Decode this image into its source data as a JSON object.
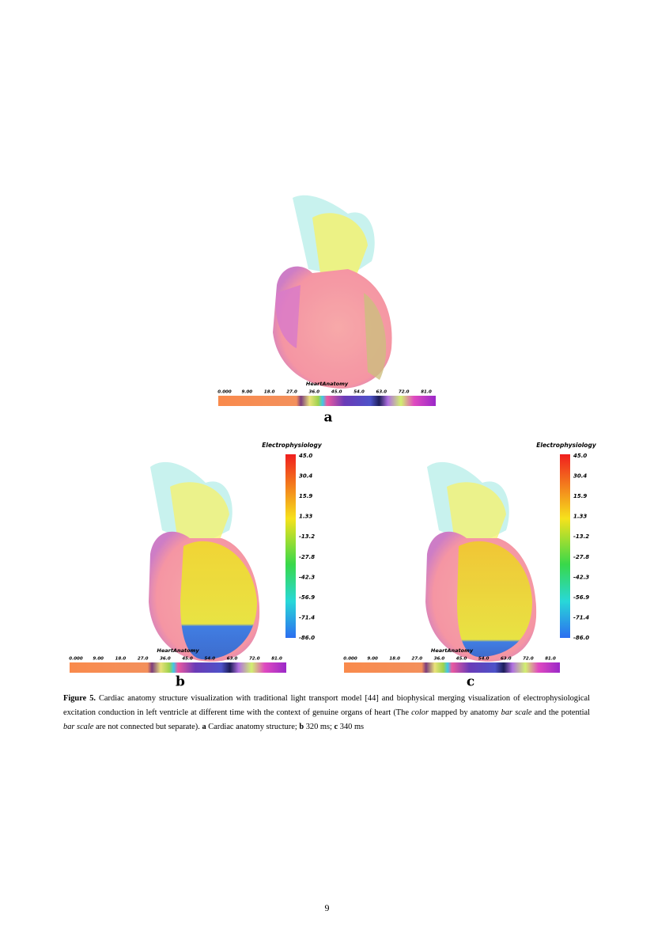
{
  "figure": {
    "panels": [
      {
        "label": "a",
        "anatomy_title": "HeartAnatomy",
        "anatomy_ticks": [
          "0.000",
          "9.00",
          "18.0",
          "27.0",
          "36.0",
          "45.0",
          "54.0",
          "63.0",
          "72.0",
          "81.0"
        ]
      },
      {
        "label": "b",
        "anatomy_title": "HeartAnatomy",
        "anatomy_ticks": [
          "0.000",
          "9.00",
          "18.0",
          "27.0",
          "36.0",
          "45.0",
          "54.0",
          "63.0",
          "72.0",
          "81.0"
        ],
        "ep_title": "Electrophysiology",
        "ep_ticks": [
          "45.0",
          "30.4",
          "15.9",
          "1.33",
          "-13.2",
          "-27.8",
          "-42.3",
          "-56.9",
          "-71.4",
          "-86.0"
        ]
      },
      {
        "label": "c",
        "anatomy_title": "HeartAnatomy",
        "anatomy_ticks": [
          "0.000",
          "9.00",
          "18.0",
          "27.0",
          "36.0",
          "45.0",
          "54.0",
          "63.0",
          "72.0",
          "81.0"
        ],
        "ep_title": "Electrophysiology",
        "ep_ticks": [
          "45.0",
          "30.4",
          "15.9",
          "1.33",
          "-13.2",
          "-27.8",
          "-42.3",
          "-56.9",
          "-71.4",
          "-86.0"
        ]
      }
    ]
  },
  "caption": [
    "Figure 5.",
    " Cardiac anatomy structure visualization with traditional light transport model [44] and biophysical merging visualization of electrophysiological excitation conduction in left ventricle at different time with the context of genuine organs of heart (The ",
    "color",
    " mapped by anatomy ",
    "bar scale",
    " and the potential ",
    "bar scale",
    " are not connected but separate). ",
    "a",
    " Cardiac anatomy structure; ",
    "b",
    " 320 ms; ",
    "c",
    " 340 ms"
  ],
  "page_number": "9"
}
